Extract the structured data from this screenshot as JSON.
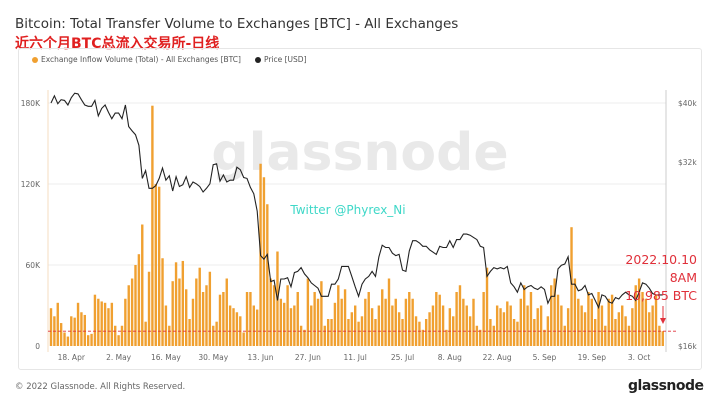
{
  "footer": {
    "copyright": "© 2022 Glassnode. All Rights Reserved.",
    "logo": "glassnode"
  },
  "chart_data": {
    "type": "bar+line",
    "title": "Bitcoin: Total Transfer Volume to Exchanges [BTC] - All Exchanges",
    "subtitle": "近六个月BTC总流入交易所-日线",
    "watermark": "glassnode",
    "overlay_text": "Twitter @Phyrex_Ni",
    "annotation": {
      "lines": [
        "2022.10.10",
        "8AM",
        "10,985 BTC"
      ],
      "reference_value": 10985,
      "color": "#e0303a"
    },
    "left_axis": {
      "ylim": [
        0,
        190000
      ],
      "ticks": [
        0,
        60000,
        120000,
        180000
      ],
      "tick_labels": [
        "0",
        "60K",
        "120K",
        "180K"
      ]
    },
    "right_axis": {
      "scale": "log",
      "ylim": [
        16000,
        44000
      ],
      "ticks": [
        16000,
        32000,
        40000
      ],
      "tick_labels": [
        "$16k",
        "$32k",
        "$40k"
      ]
    },
    "x_tick_labels": [
      "18. Apr",
      "2. May",
      "16. May",
      "30. May",
      "13. Jun",
      "27. Jun",
      "11. Jul",
      "25. Jul",
      "8. Aug",
      "22. Aug",
      "5. Sep",
      "19. Sep",
      "3. Oct"
    ],
    "x_tick_dates": [
      "2022-04-18",
      "2022-05-02",
      "2022-05-16",
      "2022-05-30",
      "2022-06-13",
      "2022-06-27",
      "2022-07-11",
      "2022-07-25",
      "2022-08-08",
      "2022-08-22",
      "2022-09-05",
      "2022-09-19",
      "2022-10-03"
    ],
    "grid": true,
    "legend_placement": "top-left",
    "dates": [
      "2022-04-12",
      "2022-04-13",
      "2022-04-14",
      "2022-04-15",
      "2022-04-16",
      "2022-04-17",
      "2022-04-18",
      "2022-04-19",
      "2022-04-20",
      "2022-04-21",
      "2022-04-22",
      "2022-04-23",
      "2022-04-24",
      "2022-04-25",
      "2022-04-26",
      "2022-04-27",
      "2022-04-28",
      "2022-04-29",
      "2022-04-30",
      "2022-05-01",
      "2022-05-02",
      "2022-05-03",
      "2022-05-04",
      "2022-05-05",
      "2022-05-06",
      "2022-05-07",
      "2022-05-08",
      "2022-05-09",
      "2022-05-10",
      "2022-05-11",
      "2022-05-12",
      "2022-05-13",
      "2022-05-14",
      "2022-05-15",
      "2022-05-16",
      "2022-05-17",
      "2022-05-18",
      "2022-05-19",
      "2022-05-20",
      "2022-05-21",
      "2022-05-22",
      "2022-05-23",
      "2022-05-24",
      "2022-05-25",
      "2022-05-26",
      "2022-05-27",
      "2022-05-28",
      "2022-05-29",
      "2022-05-30",
      "2022-05-31",
      "2022-06-01",
      "2022-06-02",
      "2022-06-03",
      "2022-06-04",
      "2022-06-05",
      "2022-06-06",
      "2022-06-07",
      "2022-06-08",
      "2022-06-09",
      "2022-06-10",
      "2022-06-11",
      "2022-06-12",
      "2022-06-13",
      "2022-06-14",
      "2022-06-15",
      "2022-06-16",
      "2022-06-17",
      "2022-06-18",
      "2022-06-19",
      "2022-06-20",
      "2022-06-21",
      "2022-06-22",
      "2022-06-23",
      "2022-06-24",
      "2022-06-25",
      "2022-06-26",
      "2022-06-27",
      "2022-06-28",
      "2022-06-29",
      "2022-06-30",
      "2022-07-01",
      "2022-07-02",
      "2022-07-03",
      "2022-07-04",
      "2022-07-05",
      "2022-07-06",
      "2022-07-07",
      "2022-07-08",
      "2022-07-09",
      "2022-07-10",
      "2022-07-11",
      "2022-07-12",
      "2022-07-13",
      "2022-07-14",
      "2022-07-15",
      "2022-07-16",
      "2022-07-17",
      "2022-07-18",
      "2022-07-19",
      "2022-07-20",
      "2022-07-21",
      "2022-07-22",
      "2022-07-23",
      "2022-07-24",
      "2022-07-25",
      "2022-07-26",
      "2022-07-27",
      "2022-07-28",
      "2022-07-29",
      "2022-07-30",
      "2022-07-31",
      "2022-08-01",
      "2022-08-02",
      "2022-08-03",
      "2022-08-04",
      "2022-08-05",
      "2022-08-06",
      "2022-08-07",
      "2022-08-08",
      "2022-08-09",
      "2022-08-10",
      "2022-08-11",
      "2022-08-12",
      "2022-08-13",
      "2022-08-14",
      "2022-08-15",
      "2022-08-16",
      "2022-08-17",
      "2022-08-18",
      "2022-08-19",
      "2022-08-20",
      "2022-08-21",
      "2022-08-22",
      "2022-08-23",
      "2022-08-24",
      "2022-08-25",
      "2022-08-26",
      "2022-08-27",
      "2022-08-28",
      "2022-08-29",
      "2022-08-30",
      "2022-08-31",
      "2022-09-01",
      "2022-09-02",
      "2022-09-03",
      "2022-09-04",
      "2022-09-05",
      "2022-09-06",
      "2022-09-07",
      "2022-09-08",
      "2022-09-09",
      "2022-09-10",
      "2022-09-11",
      "2022-09-12",
      "2022-09-13",
      "2022-09-14",
      "2022-09-15",
      "2022-09-16",
      "2022-09-17",
      "2022-09-18",
      "2022-09-19",
      "2022-09-20",
      "2022-09-21",
      "2022-09-22",
      "2022-09-23",
      "2022-09-24",
      "2022-09-25",
      "2022-09-26",
      "2022-09-27",
      "2022-09-28",
      "2022-09-29",
      "2022-09-30",
      "2022-10-01",
      "2022-10-02",
      "2022-10-03",
      "2022-10-04",
      "2022-10-05",
      "2022-10-06",
      "2022-10-07",
      "2022-10-08",
      "2022-10-09",
      "2022-10-10"
    ],
    "series": [
      {
        "name": "Exchange Inflow Volume (Total) - All Exchanges [BTC]",
        "type": "bar",
        "color": "#f0a030",
        "axis": "left",
        "values_k": [
          28,
          22,
          32,
          17,
          10,
          7,
          22,
          21,
          32,
          25,
          23,
          8,
          9,
          38,
          35,
          33,
          32,
          28,
          32,
          15,
          8,
          15,
          35,
          45,
          50,
          60,
          68,
          90,
          18,
          55,
          178,
          120,
          118,
          65,
          30,
          15,
          48,
          62,
          50,
          63,
          42,
          20,
          35,
          50,
          58,
          40,
          45,
          55,
          15,
          18,
          38,
          40,
          50,
          30,
          28,
          25,
          22,
          10,
          40,
          40,
          30,
          27,
          135,
          125,
          105,
          50,
          45,
          70,
          35,
          32,
          45,
          28,
          30,
          40,
          15,
          12,
          50,
          30,
          40,
          35,
          48,
          15,
          20,
          20,
          32,
          45,
          35,
          42,
          20,
          25,
          30,
          18,
          22,
          35,
          40,
          28,
          20,
          30,
          42,
          35,
          50,
          30,
          35,
          25,
          20,
          35,
          40,
          35,
          22,
          18,
          12,
          20,
          25,
          30,
          40,
          38,
          30,
          12,
          28,
          22,
          40,
          45,
          35,
          30,
          22,
          35,
          15,
          12,
          40,
          58,
          20,
          15,
          30,
          28,
          25,
          33,
          30,
          20,
          18,
          35,
          45,
          30,
          40,
          20,
          28,
          30,
          12,
          22,
          45,
          50,
          38,
          30,
          15,
          28,
          88,
          50,
          35,
          30,
          25,
          40,
          35,
          20,
          40,
          30,
          15,
          35,
          38,
          20,
          25,
          30,
          22,
          15,
          28,
          45,
          50,
          40,
          35,
          25,
          30,
          38,
          15,
          11
        ]
      },
      {
        "name": "Price [USD]",
        "type": "line",
        "color": "#222222",
        "axis": "right",
        "values_k": [
          40.0,
          41.1,
          39.9,
          40.5,
          40.4,
          39.7,
          40.8,
          41.5,
          41.4,
          40.5,
          39.7,
          39.5,
          39.5,
          40.4,
          38.1,
          39.2,
          39.7,
          38.6,
          37.7,
          38.5,
          38.5,
          37.7,
          39.7,
          36.6,
          36.0,
          35.5,
          34.1,
          30.1,
          31.0,
          29.0,
          29.0,
          29.3,
          30.1,
          31.3,
          29.9,
          30.4,
          28.7,
          30.3,
          29.2,
          29.4,
          30.3,
          29.1,
          29.7,
          29.5,
          29.2,
          28.6,
          29.0,
          29.5,
          31.7,
          31.8,
          29.8,
          30.5,
          29.7,
          29.9,
          29.9,
          31.4,
          31.1,
          30.2,
          30.1,
          29.1,
          28.4,
          26.6,
          22.5,
          22.2,
          22.6,
          20.4,
          20.5,
          19.0,
          20.6,
          20.6,
          20.7,
          20.0,
          21.1,
          21.2,
          21.5,
          21.0,
          20.7,
          20.3,
          20.1,
          19.9,
          19.3,
          19.3,
          19.3,
          20.2,
          20.2,
          20.6,
          21.6,
          21.6,
          21.6,
          20.8,
          20.0,
          19.3,
          20.2,
          20.6,
          20.8,
          21.2,
          20.8,
          22.4,
          23.4,
          23.2,
          23.2,
          22.7,
          22.5,
          22.6,
          21.3,
          21.2,
          22.9,
          23.8,
          23.8,
          23.6,
          23.3,
          23.3,
          23.0,
          22.8,
          22.6,
          23.3,
          23.2,
          23.2,
          23.8,
          23.2,
          23.9,
          23.9,
          24.4,
          24.4,
          24.3,
          24.1,
          23.9,
          23.3,
          23.2,
          20.8,
          21.2,
          21.5,
          21.4,
          21.5,
          21.4,
          21.6,
          20.3,
          20.0,
          19.6,
          20.3,
          19.8,
          20.0,
          20.1,
          19.9,
          19.8,
          20.0,
          19.8,
          18.8,
          19.3,
          19.3,
          21.4,
          21.7,
          21.8,
          22.4,
          20.2,
          20.2,
          19.7,
          19.8,
          20.1,
          19.4,
          19.5,
          19.0,
          18.5,
          19.4,
          19.3,
          18.9,
          18.8,
          19.2,
          19.1,
          19.4,
          19.6,
          19.4,
          19.3,
          19.0,
          19.6,
          20.3,
          20.2,
          19.9,
          19.5,
          19.4,
          19.4,
          19.4
        ]
      }
    ]
  }
}
